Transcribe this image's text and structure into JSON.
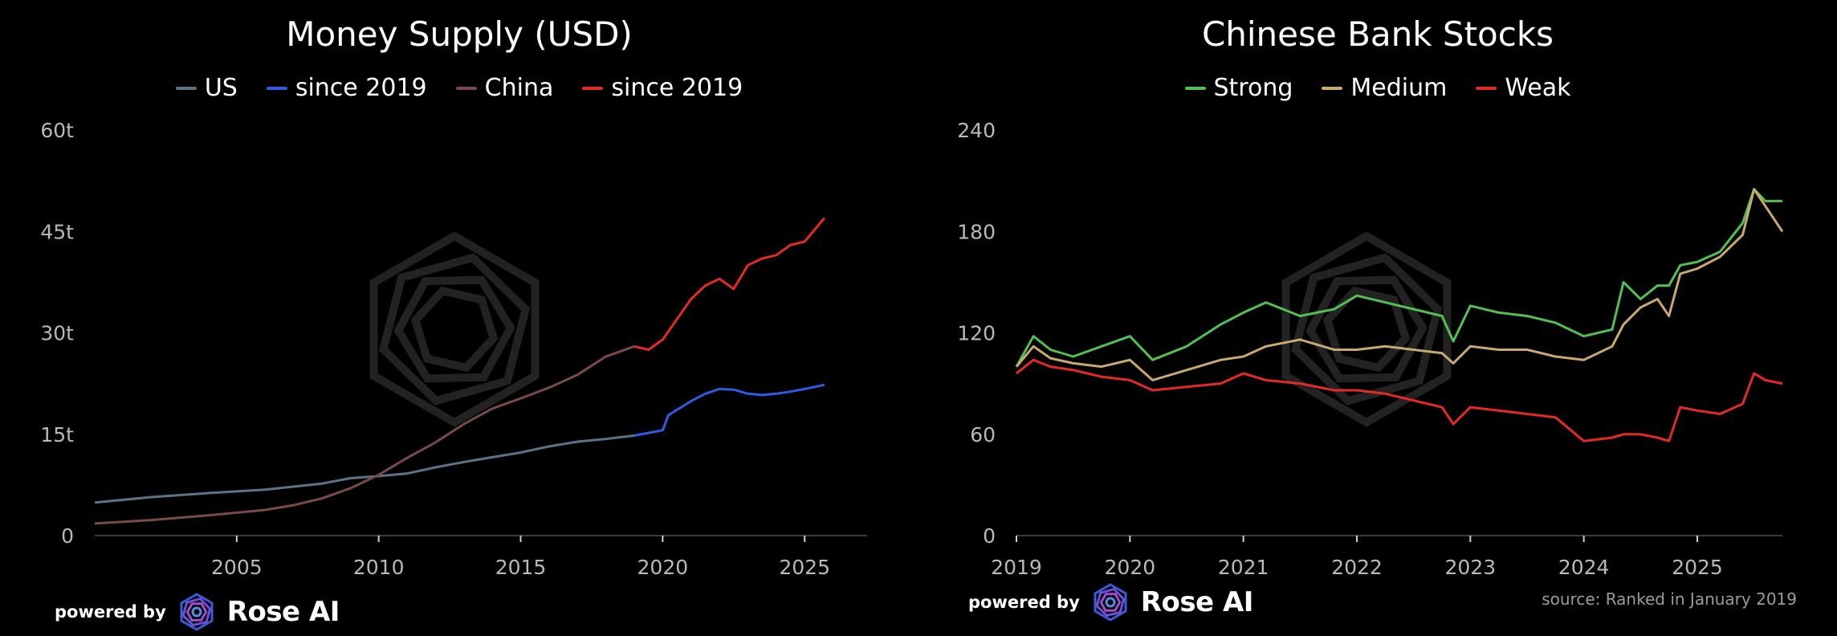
{
  "branding": {
    "powered_label": "powered by",
    "brand_name": "Rose AI",
    "logo_icon": "rose-ai-logo-icon"
  },
  "charts": [
    {
      "id": "money",
      "title": "Money Supply (USD)",
      "legend": [
        {
          "label": "US",
          "color": "#5b7289"
        },
        {
          "label": "since 2019",
          "color": "#2f5be6"
        },
        {
          "label": "China",
          "color": "#7a4a4a"
        },
        {
          "label": "since 2019",
          "color": "#e52a26"
        }
      ],
      "y_ticks": [
        "0",
        "15t",
        "30t",
        "45t",
        "60t"
      ],
      "x_ticks": [
        "2005",
        "2010",
        "2015",
        "2020",
        "2025"
      ]
    },
    {
      "id": "banks",
      "title": "Chinese Bank Stocks",
      "legend": [
        {
          "label": "Strong",
          "color": "#52c153"
        },
        {
          "label": "Medium",
          "color": "#c8a96e"
        },
        {
          "label": "Weak",
          "color": "#e52a26"
        }
      ],
      "y_ticks": [
        "0",
        "60",
        "120",
        "180",
        "240"
      ],
      "x_ticks": [
        "2019",
        "2020",
        "2021",
        "2022",
        "2023",
        "2024",
        "2025"
      ],
      "source": "source: Ranked in January 2019"
    }
  ],
  "chart_data": [
    {
      "type": "line",
      "title": "Money Supply (USD)",
      "xlabel": "",
      "ylabel": "",
      "xlim": [
        2000.0,
        2027.2
      ],
      "ylim": [
        0,
        60
      ],
      "y_unit": "trillion USD",
      "grid": false,
      "legend_position": "top-center",
      "series": [
        {
          "name": "US",
          "color": "#5b7289",
          "x": [
            2000.0,
            2002,
            2004,
            2006,
            2008,
            2009,
            2010,
            2011,
            2012,
            2013,
            2014,
            2015,
            2016,
            2017,
            2018,
            2019
          ],
          "y": [
            4.9,
            5.7,
            6.3,
            6.8,
            7.7,
            8.5,
            8.8,
            9.2,
            10.1,
            10.9,
            11.6,
            12.3,
            13.2,
            13.9,
            14.3,
            14.8
          ]
        },
        {
          "name": "US since 2019",
          "color": "#2f5be6",
          "x": [
            2019,
            2019.5,
            2020,
            2020.2,
            2020.5,
            2021,
            2021.5,
            2022,
            2022.5,
            2023,
            2023.5,
            2024,
            2024.5,
            2025,
            2025.7
          ],
          "y": [
            14.8,
            15.2,
            15.6,
            17.8,
            18.6,
            19.9,
            21.0,
            21.7,
            21.6,
            21.0,
            20.8,
            21.0,
            21.3,
            21.7,
            22.3
          ]
        },
        {
          "name": "China",
          "color": "#7a4a4a",
          "x": [
            2000.0,
            2002,
            2004,
            2006,
            2007,
            2008,
            2009,
            2010,
            2011,
            2012,
            2013,
            2014,
            2015,
            2016,
            2017,
            2018,
            2019
          ],
          "y": [
            1.8,
            2.3,
            3.0,
            3.8,
            4.5,
            5.5,
            7.0,
            9.0,
            11.5,
            13.8,
            16.5,
            18.8,
            20.3,
            21.9,
            23.8,
            26.5,
            28.0
          ]
        },
        {
          "name": "China since 2019",
          "color": "#e52a26",
          "x": [
            2019,
            2019.5,
            2020,
            2020.5,
            2021,
            2021.5,
            2022,
            2022.5,
            2023,
            2023.5,
            2024,
            2024.5,
            2025,
            2025.7
          ],
          "y": [
            28.0,
            27.5,
            29.0,
            32.0,
            35.0,
            37.0,
            38.0,
            36.5,
            40.0,
            41.0,
            41.5,
            43.0,
            43.5,
            47.0
          ]
        }
      ]
    },
    {
      "type": "line",
      "title": "Chinese Bank Stocks",
      "xlabel": "",
      "ylabel": "",
      "xlim": [
        2019.0,
        2025.75
      ],
      "ylim": [
        0,
        240
      ],
      "grid": false,
      "legend_position": "top-center",
      "series": [
        {
          "name": "Strong",
          "color": "#52c153",
          "x": [
            2019.0,
            2019.15,
            2019.3,
            2019.5,
            2019.75,
            2020.0,
            2020.2,
            2020.5,
            2020.8,
            2021.0,
            2021.2,
            2021.5,
            2021.8,
            2022.0,
            2022.25,
            2022.5,
            2022.75,
            2022.85,
            2023.0,
            2023.25,
            2023.5,
            2023.75,
            2024.0,
            2024.25,
            2024.35,
            2024.5,
            2024.65,
            2024.75,
            2024.85,
            2025.0,
            2025.2,
            2025.4,
            2025.5,
            2025.6,
            2025.75
          ],
          "y": [
            100,
            118,
            110,
            106,
            112,
            118,
            104,
            112,
            125,
            132,
            138,
            130,
            134,
            142,
            138,
            134,
            130,
            115,
            136,
            132,
            130,
            126,
            118,
            122,
            150,
            140,
            148,
            148,
            160,
            162,
            168,
            185,
            205,
            198,
            198
          ]
        },
        {
          "name": "Medium",
          "color": "#c8a96e",
          "x": [
            2019.0,
            2019.15,
            2019.3,
            2019.5,
            2019.75,
            2020.0,
            2020.2,
            2020.5,
            2020.8,
            2021.0,
            2021.2,
            2021.5,
            2021.8,
            2022.0,
            2022.25,
            2022.5,
            2022.75,
            2022.85,
            2023.0,
            2023.25,
            2023.5,
            2023.75,
            2024.0,
            2024.25,
            2024.35,
            2024.5,
            2024.65,
            2024.75,
            2024.85,
            2025.0,
            2025.2,
            2025.4,
            2025.5,
            2025.6,
            2025.75
          ],
          "y": [
            100,
            112,
            105,
            102,
            100,
            104,
            92,
            98,
            104,
            106,
            112,
            116,
            110,
            110,
            112,
            110,
            108,
            102,
            112,
            110,
            110,
            106,
            104,
            112,
            125,
            135,
            140,
            130,
            155,
            158,
            165,
            178,
            205,
            195,
            180
          ]
        },
        {
          "name": "Weak",
          "color": "#e52a26",
          "x": [
            2019.0,
            2019.15,
            2019.3,
            2019.5,
            2019.75,
            2020.0,
            2020.2,
            2020.5,
            2020.8,
            2021.0,
            2021.2,
            2021.5,
            2021.8,
            2022.0,
            2022.25,
            2022.5,
            2022.75,
            2022.85,
            2023.0,
            2023.25,
            2023.5,
            2023.75,
            2024.0,
            2024.25,
            2024.35,
            2024.5,
            2024.65,
            2024.75,
            2024.85,
            2025.0,
            2025.2,
            2025.4,
            2025.5,
            2025.6,
            2025.75
          ],
          "y": [
            96,
            104,
            100,
            98,
            94,
            92,
            86,
            88,
            90,
            96,
            92,
            90,
            86,
            86,
            84,
            80,
            76,
            66,
            76,
            74,
            72,
            70,
            56,
            58,
            60,
            60,
            58,
            56,
            76,
            74,
            72,
            78,
            96,
            92,
            90
          ]
        }
      ]
    }
  ]
}
